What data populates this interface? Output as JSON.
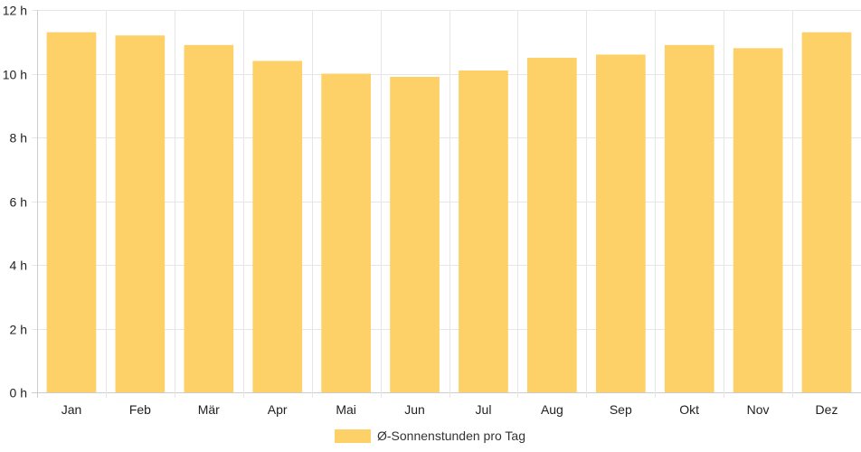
{
  "chart_data": {
    "type": "bar",
    "categories": [
      "Jan",
      "Feb",
      "Mär",
      "Apr",
      "Mai",
      "Jun",
      "Jul",
      "Aug",
      "Sep",
      "Okt",
      "Nov",
      "Dez"
    ],
    "series": [
      {
        "name": "Ø-Sonnenstunden pro Tag",
        "values": [
          11.3,
          11.2,
          10.9,
          10.4,
          10.0,
          9.9,
          10.1,
          10.5,
          10.6,
          10.9,
          10.8,
          11.3
        ]
      }
    ],
    "ylim": [
      0,
      12
    ],
    "yticks": [
      "0 h",
      "2 h",
      "4 h",
      "6 h",
      "8 h",
      "10 h",
      "12 h"
    ],
    "grid": true,
    "legend_position": "bottom",
    "colors": {
      "bar": "#fdd068",
      "grid": "#e6e6e6",
      "axis": "#cccccc"
    }
  }
}
